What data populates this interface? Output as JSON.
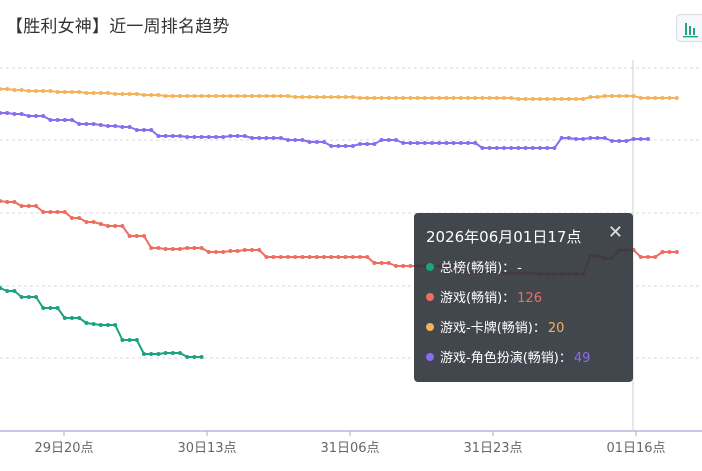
{
  "header": {
    "title": "【胜利女神】近一周排名趋势"
  },
  "toolbar": {
    "chart_type_icon": "bar-chart-icon",
    "accent": "#22a38a"
  },
  "tooltip": {
    "time": "2026年06月01日17点",
    "close_icon": "close-icon",
    "rows": [
      {
        "label": "总榜(畅销)：",
        "value": "-",
        "color": "#1aa37f"
      },
      {
        "label": "游戏(畅销)：",
        "value": "126",
        "color": "#ee6d5f"
      },
      {
        "label": "游戏-卡牌(畅销)：",
        "value": "20",
        "color": "#f6b25b"
      },
      {
        "label": "游戏-角色扮演(畅销)：",
        "value": "49",
        "color": "#8a6cee"
      }
    ]
  },
  "chart_data": {
    "type": "line",
    "x_labels": [
      "29日20点",
      "30日13点",
      "31日06点",
      "31日23点",
      "01日16点"
    ],
    "grid": true,
    "y_axis_inverted": true,
    "y_axis_labels_visible": false,
    "series": [
      {
        "name": "总榜(畅销)",
        "color": "#1aa37f",
        "values": [
          288,
          291,
          291,
          297,
          297,
          297,
          308,
          308,
          308,
          318,
          318,
          318,
          323,
          324,
          325,
          325,
          325,
          340,
          340,
          340,
          354,
          354,
          354,
          353,
          353,
          353,
          357,
          357,
          357
        ]
      },
      {
        "name": "游戏(畅销)",
        "color": "#ee6d5f",
        "values": [
          201,
          202,
          202,
          206,
          206,
          206,
          212,
          212,
          212,
          212,
          218,
          218,
          222,
          222,
          224,
          226,
          226,
          226,
          236,
          236,
          236,
          248,
          248,
          249,
          249,
          249,
          248,
          248,
          248,
          252,
          252,
          252,
          251,
          251,
          250,
          250,
          250,
          257,
          257,
          257,
          257,
          257,
          257,
          257,
          257,
          257,
          257,
          257,
          257,
          257,
          257,
          257,
          263,
          263,
          263,
          266,
          266,
          266,
          266,
          266,
          266,
          266,
          266,
          266,
          272,
          272,
          272,
          272,
          272,
          272,
          273,
          273,
          273,
          273,
          273,
          274,
          274,
          274,
          274,
          274,
          274,
          274,
          256,
          256,
          258,
          258,
          250,
          250,
          250,
          257,
          257,
          257,
          252,
          252,
          252
        ]
      },
      {
        "name": "游戏-卡牌(畅销)",
        "color": "#f6b25b",
        "values": [
          89,
          89,
          90,
          90,
          91,
          91,
          91,
          91,
          92,
          92,
          92,
          92,
          93,
          93,
          93,
          93,
          94,
          94,
          94,
          94,
          95,
          95,
          95,
          96,
          96,
          96,
          96,
          96,
          96,
          96,
          96,
          96,
          96,
          96,
          96,
          96,
          96,
          96,
          96,
          96,
          96,
          97,
          97,
          97,
          97,
          97,
          97,
          97,
          97,
          97,
          98,
          98,
          98,
          98,
          98,
          98,
          98,
          98,
          98,
          98,
          98,
          98,
          98,
          98,
          98,
          98,
          98,
          98,
          98,
          98,
          98,
          98,
          99,
          99,
          99,
          99,
          99,
          99,
          99,
          99,
          99,
          99,
          97,
          97,
          96,
          96,
          96,
          96,
          96,
          98,
          98,
          98,
          98,
          98,
          98
        ]
      },
      {
        "name": "游戏-角色扮演(畅销)",
        "color": "#8a6cee",
        "values": [
          113,
          113,
          114,
          114,
          116,
          116,
          116,
          120,
          120,
          120,
          120,
          124,
          124,
          124,
          125,
          126,
          126,
          127,
          127,
          130,
          130,
          130,
          136,
          136,
          136,
          136,
          137,
          137,
          137,
          137,
          137,
          137,
          136,
          136,
          136,
          138,
          138,
          138,
          138,
          138,
          140,
          140,
          140,
          142,
          142,
          142,
          146,
          146,
          146,
          146,
          144,
          144,
          144,
          140,
          140,
          140,
          143,
          143,
          143,
          143,
          143,
          143,
          143,
          143,
          143,
          143,
          143,
          148,
          148,
          148,
          148,
          148,
          148,
          148,
          148,
          148,
          148,
          148,
          138,
          138,
          139,
          139,
          138,
          138,
          138,
          141,
          141,
          141,
          139,
          139,
          139
        ]
      }
    ],
    "cursor_x_label": "2026年06月01日17点"
  }
}
